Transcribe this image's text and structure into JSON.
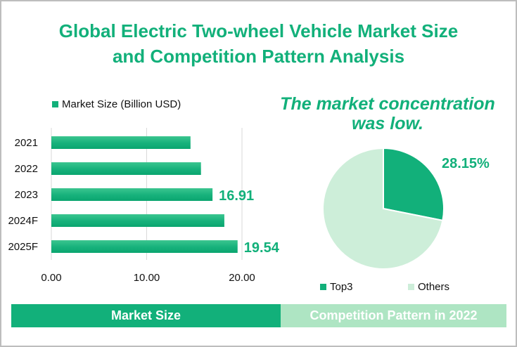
{
  "title_line1": "Global Electric Two-wheel Vehicle Market Size",
  "title_line2": "and Competition Pattern Analysis",
  "headline_line1": "The market concentration",
  "headline_line2": "was low.",
  "banners": {
    "left": "Market Size",
    "right": "Competition Pattern in 2022"
  },
  "colors": {
    "accent": "#12b07a",
    "light": "#cdeed9",
    "banner_right": "#aee5c3"
  },
  "chart_data": [
    {
      "type": "bar",
      "orientation": "horizontal",
      "legend": "Market Size (Billion USD)",
      "legend_position": "top-left",
      "categories": [
        "2021",
        "2022",
        "2023",
        "2024F",
        "2025F"
      ],
      "values": [
        14.6,
        15.7,
        16.91,
        18.15,
        19.54
      ],
      "data_labels": {
        "2023": "16.91",
        "2025F": "19.54"
      },
      "xticks": [
        "0.00",
        "10.00",
        "20.00"
      ],
      "xlim": [
        0,
        25
      ],
      "grid": true
    },
    {
      "type": "pie",
      "labels": [
        "Top3",
        "Others"
      ],
      "values": [
        28.15,
        71.85
      ],
      "data_labels": [
        "28.15%"
      ],
      "legend_position": "bottom"
    }
  ]
}
